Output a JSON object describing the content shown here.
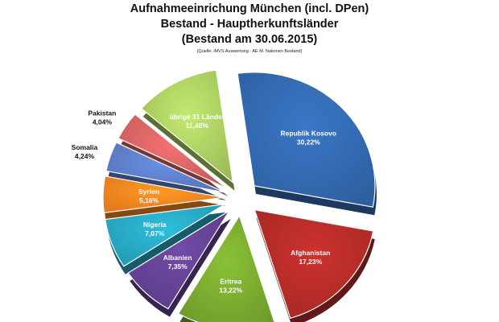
{
  "header": {
    "title_line1": "Aufnahmeeinrichung München (incl. DPen)",
    "title_line2": "Bestand - Hauptherkunftsländer",
    "title_line3": "(Bestand am 30.06.2015)",
    "source": "(Quelle: iMVS Auswertung - AE M. Nationen Bestand)"
  },
  "chart_data": {
    "type": "pie",
    "title": "Aufnahmeeinrichung München (incl. DPen) Bestand - Hauptherkunftsländer (Bestand am 30.06.2015)",
    "unit": "%",
    "exploded": true,
    "style": "3d",
    "slices": [
      {
        "name": "Republik Kosovo",
        "value": 30.22,
        "label": "30,22%",
        "color": "#2e5f9f",
        "label_position": "inside"
      },
      {
        "name": "Afghanistan",
        "value": 17.23,
        "label": "17,23%",
        "color": "#a42824",
        "label_position": "inside"
      },
      {
        "name": "Eritrea",
        "value": 13.22,
        "label": "13,22%",
        "color": "#6e9a2b",
        "label_position": "inside"
      },
      {
        "name": "Albanien",
        "value": 7.35,
        "label": "7,35%",
        "color": "#5a3c86",
        "label_position": "inside"
      },
      {
        "name": "Nigeria",
        "value": 7.07,
        "label": "7,07%",
        "color": "#2498b0",
        "label_position": "inside"
      },
      {
        "name": "Syrien",
        "value": 5.16,
        "label": "5,16%",
        "color": "#e2791c",
        "label_position": "inside"
      },
      {
        "name": "Somalia",
        "value": 4.24,
        "label": "4,24%",
        "color": "#5572b6",
        "label_position": "outside"
      },
      {
        "name": "Pakistan",
        "value": 4.04,
        "label": "4,04%",
        "color": "#c45a5a",
        "label_position": "outside"
      },
      {
        "name": "übrige 31 Länder",
        "value": 11.48,
        "label": "11,48%",
        "color": "#9bbb59",
        "label_position": "inside"
      }
    ]
  }
}
